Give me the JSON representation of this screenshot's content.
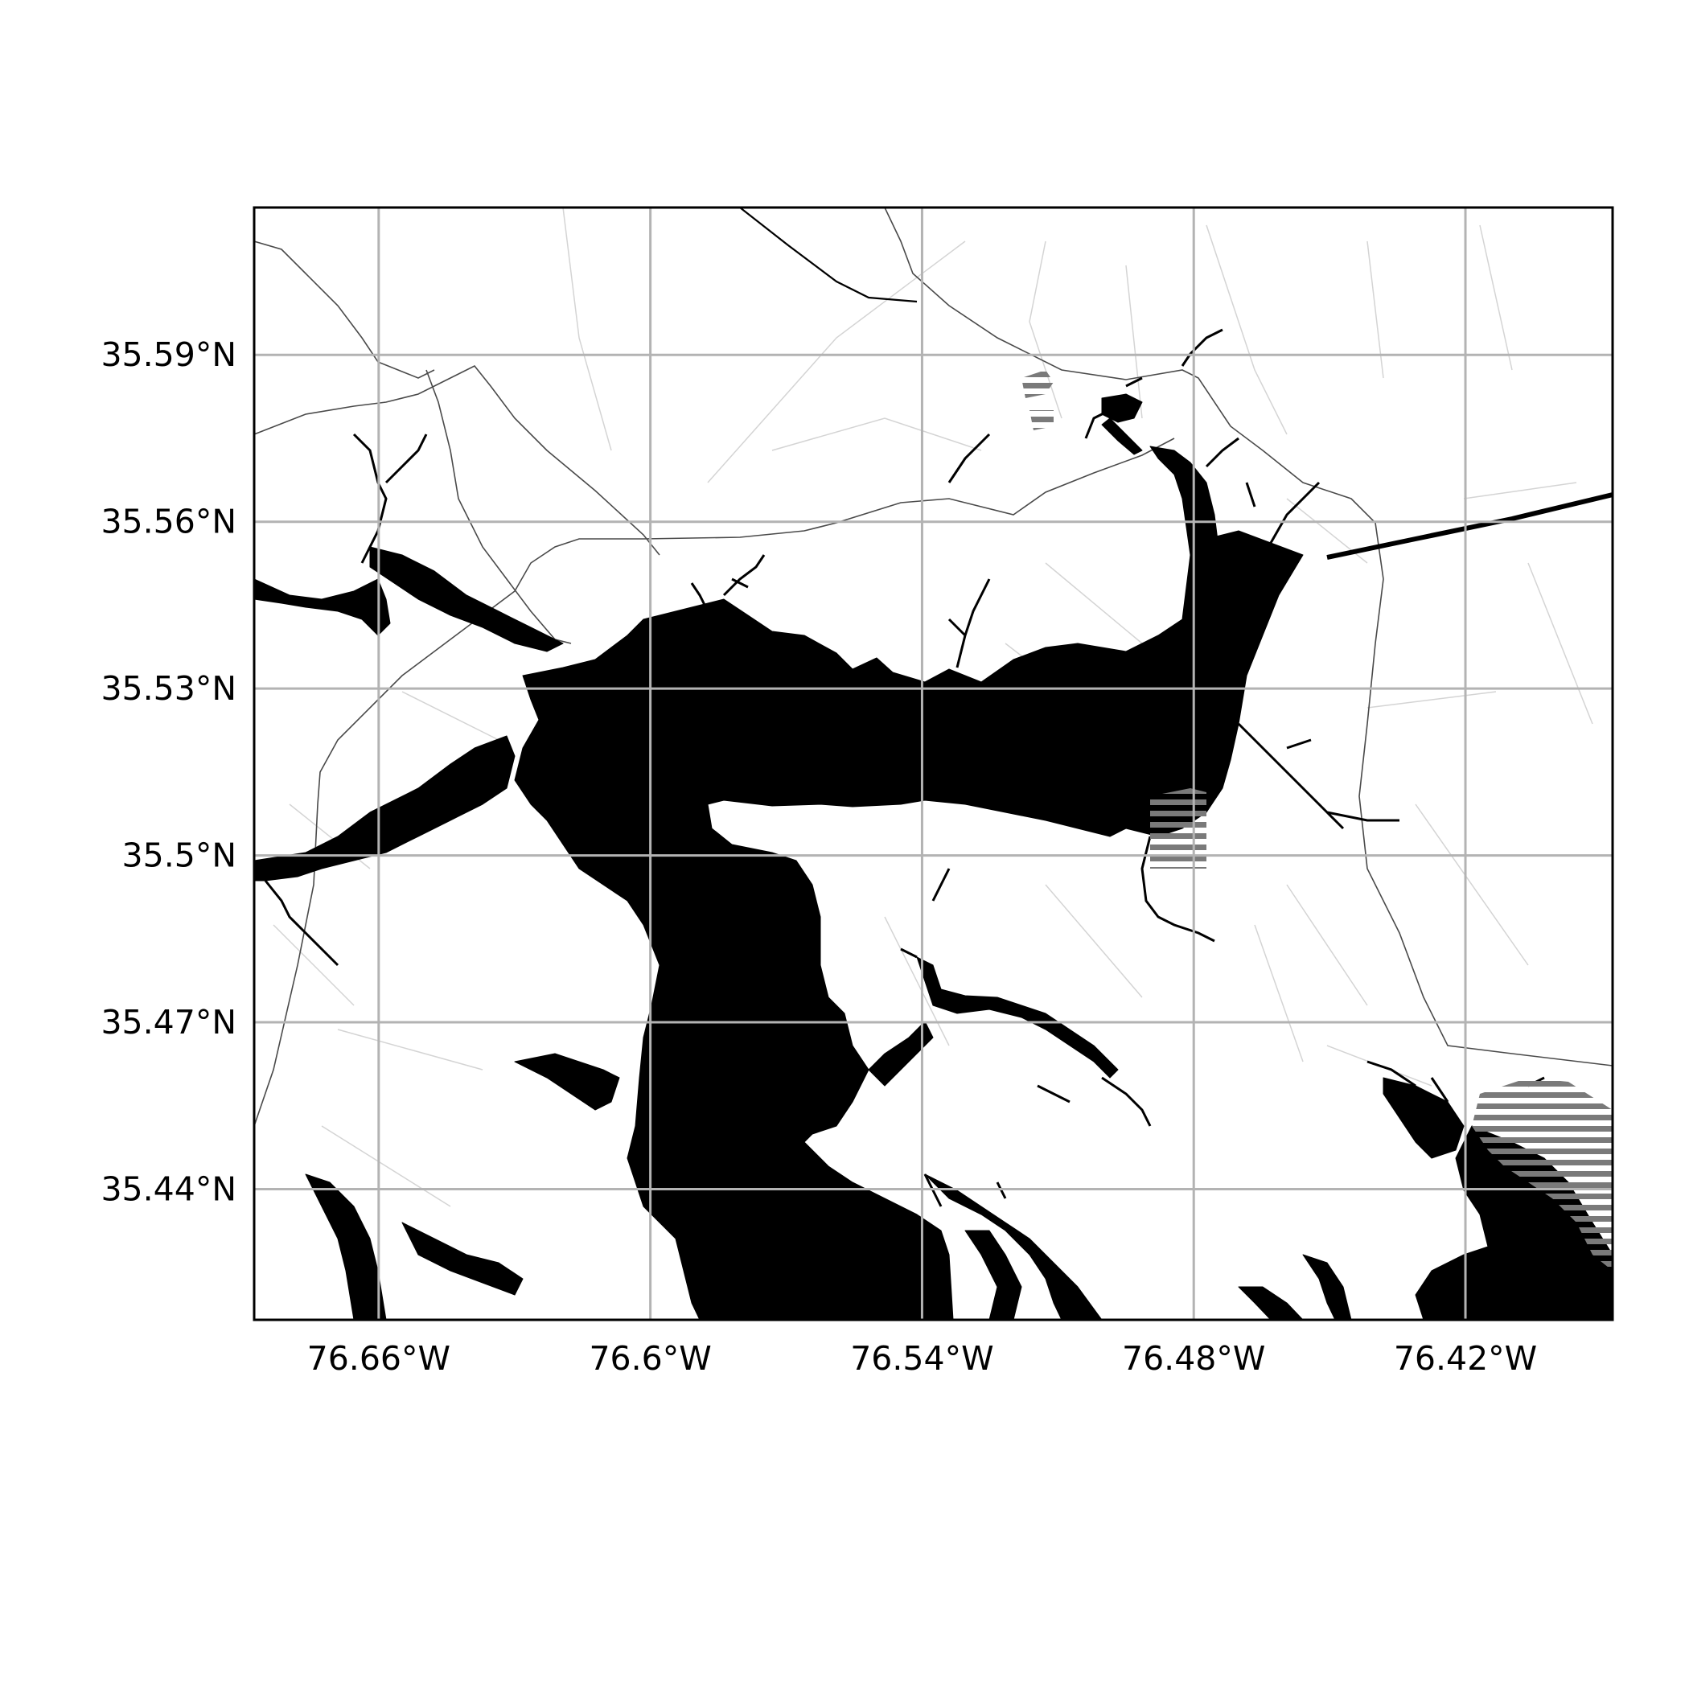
{
  "map": {
    "graticule": {
      "longitudes": [
        -76.66,
        -76.6,
        -76.54,
        -76.48,
        -76.42
      ],
      "latitudes": [
        35.59,
        35.56,
        35.53,
        35.5,
        35.47,
        35.44
      ],
      "lon_labels": [
        "76.66°W",
        "76.6°W",
        "76.54°W",
        "76.48°W",
        "76.42°W"
      ],
      "lat_labels": [
        "35.59°N",
        "35.56°N",
        "35.53°N",
        "35.5°N",
        "35.47°N",
        "35.44°N"
      ],
      "extent": {
        "lon_min": -76.6875,
        "lon_max": -76.3875,
        "lat_min": 35.4165,
        "lat_max": 35.6165
      },
      "grid": true
    },
    "colors": {
      "water": "#000000",
      "land": "#ffffff",
      "roads": "#555555",
      "minor_roads": "#cfcfcf",
      "grid": "#b3b3b3",
      "hatch": "#7a7a7a"
    }
  }
}
